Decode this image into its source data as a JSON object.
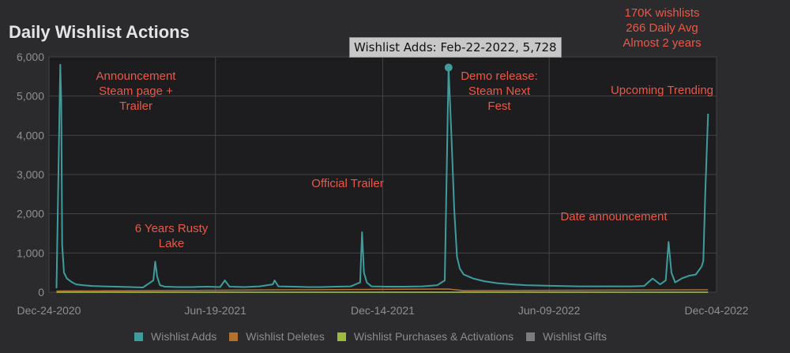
{
  "header": {
    "title": "Daily Wishlist Actions"
  },
  "tooltip": {
    "text": "Wishlist Adds: Feb-22-2022, 5,728"
  },
  "annotations": [
    {
      "id": "announcement",
      "text": "Announcement\nSteam page +\nTrailer"
    },
    {
      "id": "rusty-lake",
      "text": "6 Years Rusty\nLake"
    },
    {
      "id": "official-trailer",
      "text": "Official Trailer"
    },
    {
      "id": "demo-release",
      "text": "Demo release:\nSteam Next\nFest"
    },
    {
      "id": "date-announcement",
      "text": "Date announcement"
    },
    {
      "id": "upcoming-trending",
      "text": "Upcoming Trending"
    },
    {
      "id": "summary",
      "text": "170K wishlists\n266 Daily Avg\nAlmost 2 years"
    }
  ],
  "colors": {
    "adds": "#3f9c9c",
    "deletes": "#b2722c",
    "purchases": "#9dbb3a",
    "gifts": "#7c7c7c",
    "annotation": "#ea5848",
    "plot_bg": "#1d1d1f",
    "grid": "#444448"
  },
  "chart_data": {
    "type": "line",
    "title": "Daily Wishlist Actions",
    "xlabel": "",
    "ylabel": "",
    "ylim": [
      0,
      6000
    ],
    "y_ticks": [
      "0",
      "1,000",
      "2,000",
      "3,000",
      "4,000",
      "5,000",
      "6,000"
    ],
    "x_ticks": [
      "Dec-24-2020",
      "Jun-19-2021",
      "Dec-14-2021",
      "Jun-09-2022",
      "Dec-04-2022"
    ],
    "grid": true,
    "legend_position": "bottom",
    "series": [
      {
        "name": "Wishlist Adds",
        "x": [
          "2021-01-01",
          "2021-01-05",
          "2021-01-06",
          "2021-01-07",
          "2021-01-09",
          "2021-01-12",
          "2021-01-17",
          "2021-01-22",
          "2021-01-29",
          "2021-02-08",
          "2021-02-20",
          "2021-03-05",
          "2021-03-20",
          "2021-04-03",
          "2021-04-14",
          "2021-04-16",
          "2021-04-18",
          "2021-04-21",
          "2021-04-26",
          "2021-05-10",
          "2021-05-25",
          "2021-06-10",
          "2021-06-24",
          "2021-06-29",
          "2021-07-04",
          "2021-07-20",
          "2021-08-05",
          "2021-08-19",
          "2021-08-21",
          "2021-08-25",
          "2021-09-10",
          "2021-09-25",
          "2021-10-10",
          "2021-10-25",
          "2021-11-10",
          "2021-11-20",
          "2021-11-22",
          "2021-11-24",
          "2021-11-27",
          "2021-12-02",
          "2021-12-18",
          "2022-01-05",
          "2022-01-25",
          "2022-02-10",
          "2022-02-18",
          "2022-02-22",
          "2022-02-25",
          "2022-02-28",
          "2022-03-03",
          "2022-03-06",
          "2022-03-10",
          "2022-03-20",
          "2022-04-01",
          "2022-04-15",
          "2022-05-01",
          "2022-05-15",
          "2022-06-01",
          "2022-06-20",
          "2022-07-10",
          "2022-07-30",
          "2022-08-20",
          "2022-09-05",
          "2022-09-18",
          "2022-09-27",
          "2022-10-05",
          "2022-10-11",
          "2022-10-14",
          "2022-10-17",
          "2022-10-21",
          "2022-10-28",
          "2022-11-05",
          "2022-11-12",
          "2022-11-18",
          "2022-11-20",
          "2022-11-22",
          "2022-11-25"
        ],
        "values": [
          100,
          5800,
          4900,
          1200,
          500,
          350,
          260,
          200,
          180,
          160,
          150,
          140,
          130,
          120,
          300,
          780,
          400,
          180,
          140,
          130,
          130,
          140,
          130,
          300,
          140,
          130,
          150,
          200,
          300,
          150,
          140,
          130,
          130,
          140,
          150,
          250,
          1530,
          500,
          250,
          150,
          140,
          140,
          150,
          180,
          300,
          5728,
          4000,
          2100,
          900,
          600,
          450,
          350,
          280,
          230,
          200,
          180,
          170,
          160,
          150,
          150,
          150,
          150,
          160,
          350,
          200,
          300,
          1280,
          500,
          250,
          350,
          420,
          450,
          650,
          800,
          2500,
          4550
        ]
      },
      {
        "name": "Wishlist Deletes",
        "x": [
          "2021-01-01",
          "2022-02-22",
          "2022-03-10",
          "2022-11-25"
        ],
        "values": [
          30,
          80,
          40,
          60
        ]
      },
      {
        "name": "Wishlist Purchases & Activations",
        "x": [
          "2021-01-01",
          "2022-11-25"
        ],
        "values": [
          0,
          0
        ]
      },
      {
        "name": "Wishlist Gifts",
        "x": [
          "2021-01-01",
          "2022-11-25"
        ],
        "values": [
          0,
          0
        ]
      }
    ]
  }
}
